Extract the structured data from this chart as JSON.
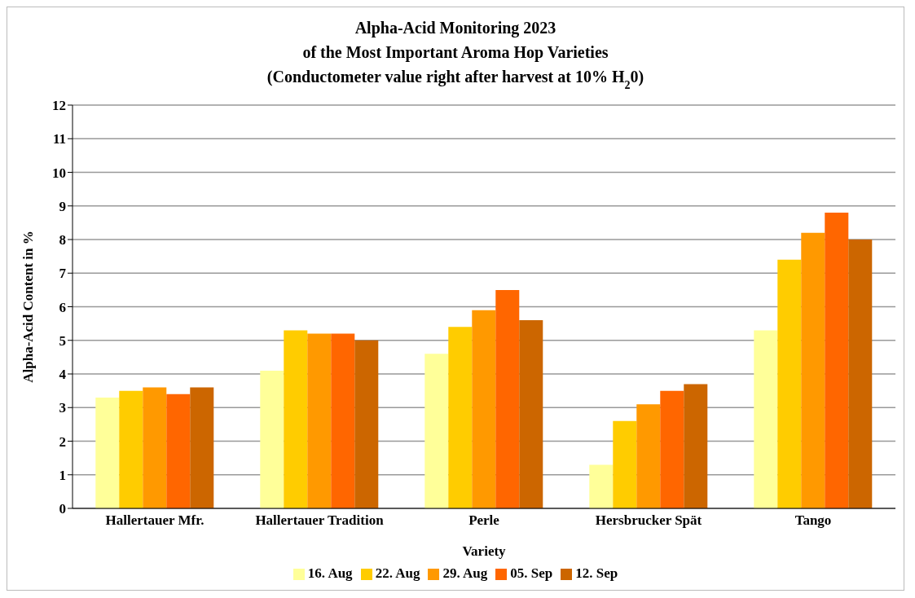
{
  "chart_data": {
    "type": "bar",
    "title": "Alpha-Acid Monitoring 2023\nof the Most Important Aroma Hop Varieties\n(Conductometer value right after harvest at 10% H$_{2}$0)",
    "xlabel": "Variety",
    "ylabel": "Alpha-Acid Content in %",
    "categories": [
      "Hallertauer Mfr.",
      "Hallertauer Tradition",
      "Perle",
      "Hersbrucker Spät",
      "Tango"
    ],
    "series": [
      {
        "name": "16. Aug",
        "color": "#ffff99",
        "values": [
          3.3,
          4.1,
          4.6,
          1.3,
          5.3
        ]
      },
      {
        "name": "22. Aug",
        "color": "#ffcc00",
        "values": [
          3.5,
          5.3,
          5.4,
          2.6,
          7.4
        ]
      },
      {
        "name": "29. Aug",
        "color": "#ff9900",
        "values": [
          3.6,
          5.2,
          5.9,
          3.1,
          8.2
        ]
      },
      {
        "name": "05. Sep",
        "color": "#ff6600",
        "values": [
          3.4,
          5.2,
          6.5,
          3.5,
          8.8
        ]
      },
      {
        "name": "12. Sep",
        "color": "#cc6600",
        "values": [
          3.6,
          5.0,
          5.6,
          3.7,
          8.0
        ]
      }
    ],
    "ylim": [
      0,
      12
    ],
    "yticks": [
      0,
      1,
      2,
      3,
      4,
      5,
      6,
      7,
      8,
      9,
      10,
      11,
      12
    ],
    "grid": "y",
    "legend": "bottom"
  }
}
